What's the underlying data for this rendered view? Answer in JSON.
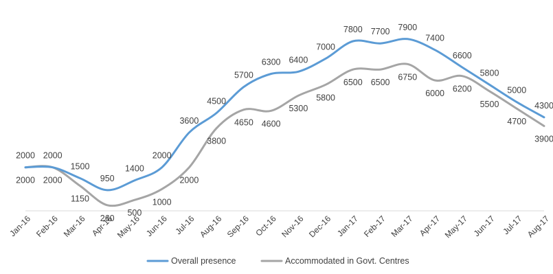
{
  "chart_data": {
    "type": "line",
    "categories": [
      "Jan-16",
      "Feb-16",
      "Mar-16",
      "Apr-16",
      "May-16",
      "Jun-16",
      "Jul-16",
      "Aug-16",
      "Sep-16",
      "Oct-16",
      "Nov-16",
      "Dec-16",
      "Jan-17",
      "Feb-17",
      "Mar-17",
      "Apr-17",
      "May-17",
      "Jun-17",
      "Jul-17",
      "Aug-17"
    ],
    "series": [
      {
        "name": "Overall presence",
        "color": "#5B9BD5",
        "values": [
          2000,
          2000,
          1500,
          950,
          1400,
          2000,
          3600,
          4500,
          5700,
          6300,
          6400,
          7000,
          7800,
          7700,
          7900,
          7400,
          6600,
          5800,
          5000,
          4300
        ]
      },
      {
        "name": "Accommodated in Govt. Centres",
        "color": "#A5A5A5",
        "values": [
          2000,
          2000,
          1150,
          260,
          500,
          1000,
          2000,
          3800,
          4650,
          4600,
          5300,
          5800,
          6500,
          6500,
          6750,
          6000,
          6200,
          5500,
          4700,
          3900
        ]
      }
    ],
    "ylim": [
      0,
      9000
    ],
    "grid": false,
    "legend_position": "bottom",
    "title": "",
    "xlabel": "",
    "ylabel": ""
  }
}
